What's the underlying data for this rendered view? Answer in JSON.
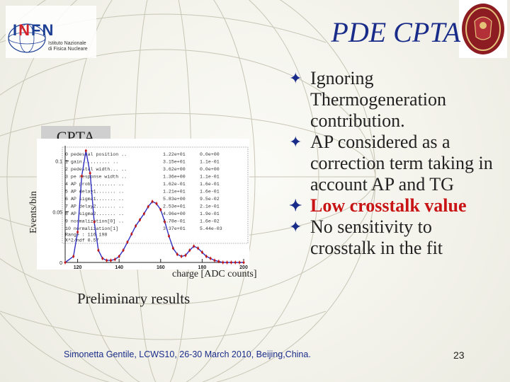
{
  "header": {
    "title": "PDE CPTA"
  },
  "logo": {
    "letters": [
      "I",
      "N",
      "F",
      "N"
    ],
    "lines": [
      "Istituto Nazionale",
      "di Fisica Nucleare"
    ]
  },
  "seal": {
    "icon": "university-seal-icon"
  },
  "figure": {
    "panel_label": "CPTA",
    "ylabel": "Events/bin",
    "xlabel": "charge [ADC counts]",
    "caption": "Preliminary results",
    "y_ticks": [
      "0.1",
      "0.05",
      "0"
    ],
    "x_ticks": [
      "120",
      "140",
      "160",
      "180",
      "200"
    ],
    "stats": [
      {
        "label": "0 pedestal position ..",
        "v1": "1.22e+01",
        "v2": "0.0e+00"
      },
      {
        "label": "1 gain.......... ..",
        "v1": "3.15e+01",
        "v2": "1.1e-01"
      },
      {
        "label": "2 pedestal width... ..",
        "v1": "3.62e+00",
        "v2": "0.0e+00"
      },
      {
        "label": "3 pe response width ..",
        "v1": "1.36e+00",
        "v2": "1.1e-01"
      },
      {
        "label": "4 AP prob......... ..",
        "v1": "1.62e-01",
        "v2": "1.6e-01"
      },
      {
        "label": "5 AP delay1....... ..",
        "v1": "1.21e+01",
        "v2": "1.6e-01"
      },
      {
        "label": "6 AP sigma1....... ..",
        "v1": "5.83e+00",
        "v2": "9.5e-02"
      },
      {
        "label": "7 AP delay2....... ..",
        "v1": "2.53e+01",
        "v2": "2.1e-01"
      },
      {
        "label": "8 AP sigma2....... ..",
        "v1": "4.96e+00",
        "v2": "1.9e-01"
      },
      {
        "label": "9 normalization[0] ..",
        "v1": "4.78e-01",
        "v2": "1.6e-02"
      },
      {
        "label": "10 normalization[1]",
        "v1": "3.37e+01",
        "v2": "5.44e-03"
      }
    ],
    "range_line": "Range : 116  198",
    "chi_line": "X^2/ndf  0.57"
  },
  "chart_data": {
    "type": "line",
    "x": [
      114,
      118,
      120,
      122,
      124,
      126,
      128,
      130,
      132,
      134,
      136,
      138,
      140,
      142,
      144,
      146,
      148,
      150,
      152,
      154,
      156,
      158,
      160,
      162,
      164,
      166,
      168,
      170,
      172,
      174,
      176,
      178,
      180,
      182,
      184,
      186,
      188,
      190,
      192,
      194,
      196,
      198,
      200
    ],
    "series": [
      {
        "values": [
          0.0,
          0.006,
          0.03,
          0.085,
          0.11,
          0.088,
          0.04,
          0.012,
          0.004,
          0.002,
          0.002,
          0.003,
          0.006,
          0.012,
          0.02,
          0.028,
          0.036,
          0.042,
          0.048,
          0.055,
          0.06,
          0.058,
          0.052,
          0.04,
          0.026,
          0.014,
          0.008,
          0.006,
          0.007,
          0.012,
          0.016,
          0.014,
          0.01,
          0.006,
          0.004,
          0.002,
          0.001,
          0.0,
          0.0,
          0.0,
          0.0,
          0.0,
          0.0
        ]
      }
    ],
    "ylim": [
      0,
      0.115
    ],
    "xlim": [
      114,
      200
    ],
    "grid": false,
    "colors": {
      "data": "#c01818",
      "fit": "#3030c0"
    }
  },
  "bullets": [
    {
      "text": "Ignoring Thermogeneration contribution.",
      "style": "normal"
    },
    {
      "text": "AP considered as a correction term taking in account AP and TG",
      "style": "normal"
    },
    {
      "text": "Low crosstalk value",
      "style": "red-bold"
    },
    {
      "text": "No sensitivity to crosstalk in the fit",
      "style": "normal"
    }
  ],
  "footer": {
    "text": "Simonetta Gentile, LCWS10, 26-30 March 2010, Beijing,China.",
    "page": "23"
  }
}
